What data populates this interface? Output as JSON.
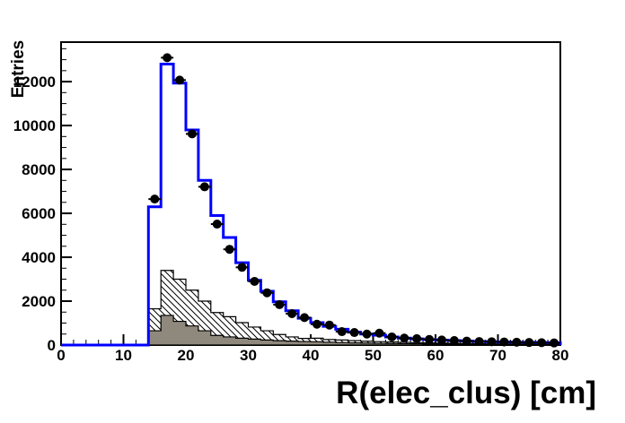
{
  "page": {
    "background": "#ffffff"
  },
  "chart_data": {
    "type": "histogram",
    "title": "",
    "xlabel": "R(elec_clus) [cm]",
    "ylabel": "Entries",
    "xlim": [
      0,
      80
    ],
    "ylim": [
      0,
      13800
    ],
    "grid": false,
    "legend": null,
    "x_major_ticks": [
      0,
      10,
      20,
      30,
      40,
      50,
      60,
      70,
      80
    ],
    "x_tick_labels": [
      "0",
      "10",
      "20",
      "30",
      "40",
      "50",
      "60",
      "70",
      "80"
    ],
    "x_minor_step": 2,
    "y_major_ticks": [
      0,
      2000,
      4000,
      6000,
      8000,
      10000,
      12000
    ],
    "y_tick_labels": [
      "0",
      "2000",
      "4000",
      "6000",
      "8000",
      "10000",
      "12000"
    ],
    "y_minor_step": 500,
    "bins": {
      "start": 14,
      "width": 2,
      "count": 33
    },
    "colors": {
      "total_line": "#0000ff",
      "gray_fill": "#8f887c",
      "hatch_line": "#000000",
      "marker": "#000000",
      "axis": "#000000"
    },
    "series": [
      {
        "name": "total-mc-step-line",
        "style": "step-line",
        "values": [
          6300,
          12800,
          11930,
          9800,
          7500,
          5900,
          4900,
          3750,
          2950,
          2450,
          1970,
          1560,
          1220,
          1020,
          850,
          720,
          585,
          500,
          450,
          370,
          315,
          280,
          250,
          225,
          205,
          185,
          165,
          150,
          140,
          130,
          120,
          110,
          100
        ]
      },
      {
        "name": "background-hatched",
        "style": "step-hatched",
        "values": [
          1650,
          3400,
          3000,
          2500,
          2000,
          1480,
          1290,
          1020,
          820,
          650,
          480,
          370,
          300,
          310,
          250,
          230,
          200,
          175,
          155,
          140,
          125,
          110,
          98,
          88,
          78,
          68,
          60,
          53,
          47,
          42,
          38,
          34,
          30
        ]
      },
      {
        "name": "background-gray-filled",
        "style": "step-filled",
        "values": [
          650,
          1350,
          1080,
          870,
          650,
          440,
          370,
          310,
          270,
          230,
          200,
          180,
          160,
          150,
          130,
          115,
          100,
          90,
          80,
          72,
          64,
          58,
          52,
          47,
          42,
          38,
          34,
          30,
          27,
          24,
          21,
          19,
          17
        ]
      },
      {
        "name": "data-points",
        "style": "markers-with-errors",
        "values": [
          6650,
          13090,
          12070,
          9620,
          7210,
          5510,
          4360,
          3540,
          2900,
          2380,
          1840,
          1430,
          1250,
          950,
          910,
          610,
          570,
          500,
          540,
          370,
          315,
          290,
          255,
          230,
          205,
          180,
          160,
          150,
          140,
          128,
          115,
          108,
          95
        ]
      }
    ]
  }
}
